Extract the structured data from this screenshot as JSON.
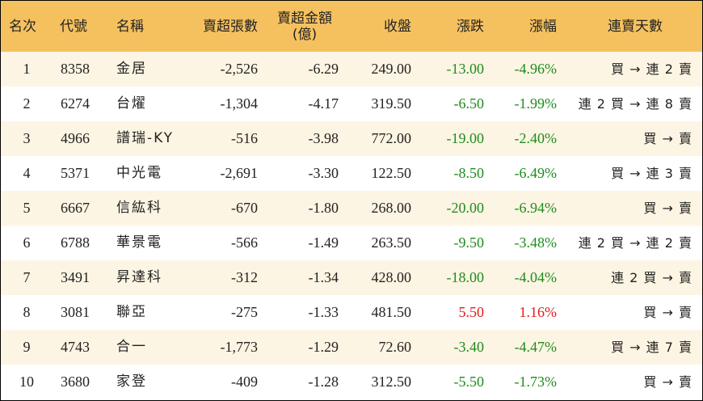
{
  "headers": {
    "rank": "名次",
    "code": "代號",
    "name": "名稱",
    "sell_lots": "賣超張數",
    "sell_amount_line1": "賣超金額",
    "sell_amount_line2": "(億)",
    "close": "收盤",
    "change": "漲跌",
    "pct": "漲幅",
    "streak": "連賣天數"
  },
  "colors": {
    "header_bg": "#f5c15f",
    "odd_row_bg": "#fdf5e3",
    "down": "#1e8c1e",
    "up": "#e01b1b"
  },
  "rows": [
    {
      "rank": "1",
      "code": "8358",
      "name": "金居",
      "lots": "-2,526",
      "amount": "-6.29",
      "close": "249.00",
      "change": "-13.00",
      "pct": "-4.96%",
      "dir": "down",
      "streak": "買 → 連 2 賣"
    },
    {
      "rank": "2",
      "code": "6274",
      "name": "台燿",
      "lots": "-1,304",
      "amount": "-4.17",
      "close": "319.50",
      "change": "-6.50",
      "pct": "-1.99%",
      "dir": "down",
      "streak": "連 2 買 → 連 8 賣"
    },
    {
      "rank": "3",
      "code": "4966",
      "name": "譜瑞-KY",
      "lots": "-516",
      "amount": "-3.98",
      "close": "772.00",
      "change": "-19.00",
      "pct": "-2.40%",
      "dir": "down",
      "streak": "買 → 賣"
    },
    {
      "rank": "4",
      "code": "5371",
      "name": "中光電",
      "lots": "-2,691",
      "amount": "-3.30",
      "close": "122.50",
      "change": "-8.50",
      "pct": "-6.49%",
      "dir": "down",
      "streak": "買 → 連 3 賣"
    },
    {
      "rank": "5",
      "code": "6667",
      "name": "信紘科",
      "lots": "-670",
      "amount": "-1.80",
      "close": "268.00",
      "change": "-20.00",
      "pct": "-6.94%",
      "dir": "down",
      "streak": "買 → 賣"
    },
    {
      "rank": "6",
      "code": "6788",
      "name": "華景電",
      "lots": "-566",
      "amount": "-1.49",
      "close": "263.50",
      "change": "-9.50",
      "pct": "-3.48%",
      "dir": "down",
      "streak": "連 2 買 → 連 2 賣"
    },
    {
      "rank": "7",
      "code": "3491",
      "name": "昇達科",
      "lots": "-312",
      "amount": "-1.34",
      "close": "428.00",
      "change": "-18.00",
      "pct": "-4.04%",
      "dir": "down",
      "streak": "連 2 買 → 賣"
    },
    {
      "rank": "8",
      "code": "3081",
      "name": "聯亞",
      "lots": "-275",
      "amount": "-1.33",
      "close": "481.50",
      "change": "5.50",
      "pct": "1.16%",
      "dir": "up",
      "streak": "買 → 賣"
    },
    {
      "rank": "9",
      "code": "4743",
      "name": "合一",
      "lots": "-1,773",
      "amount": "-1.29",
      "close": "72.60",
      "change": "-3.40",
      "pct": "-4.47%",
      "dir": "down",
      "streak": "買 → 連 7 賣"
    },
    {
      "rank": "10",
      "code": "3680",
      "name": "家登",
      "lots": "-409",
      "amount": "-1.28",
      "close": "312.50",
      "change": "-5.50",
      "pct": "-1.73%",
      "dir": "down",
      "streak": "買 → 賣"
    }
  ]
}
